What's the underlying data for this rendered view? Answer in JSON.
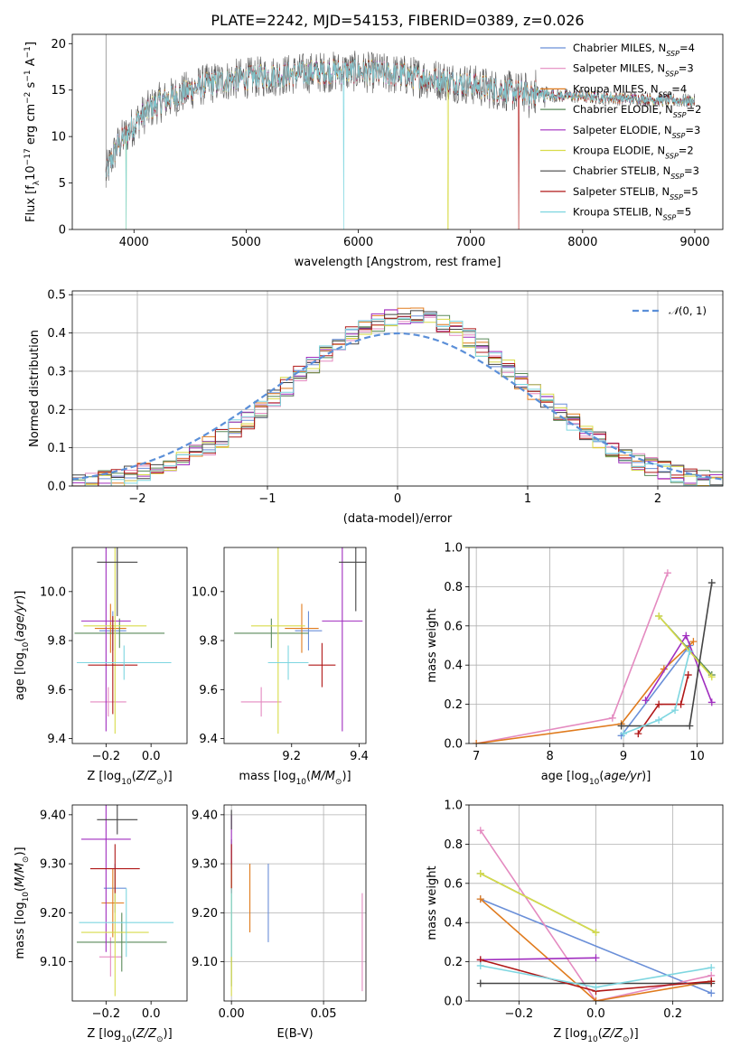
{
  "figure": {
    "title": "PLATE=2242, MJD=54153, FIBERID=0389, z=0.026"
  },
  "colors": {
    "Chabrier MILES": "#6a8fd8",
    "Salpeter MILES": "#e48ac0",
    "Kroupa MILES": "#e07b1e",
    "Chabrier ELODIE": "#5a8a5a",
    "Salpeter ELODIE": "#a02dbf",
    "Kroupa ELODIE": "#d8dc4a",
    "Chabrier STELIB": "#444444",
    "Salpeter STELIB": "#b01818",
    "Kroupa STELIB": "#7ed6e0",
    "spectrum": "#555555",
    "gaussian": "#5b8fd8",
    "grid": "#b0b0b0"
  },
  "chart_data": [
    {
      "id": "spectrum",
      "type": "line",
      "xlabel": "wavelength [Angstrom, rest frame]",
      "ylabel": "Flux [f_λ10^-17 erg cm^-2 s^-1 A^-1]",
      "xlim": [
        3450,
        9250
      ],
      "ylim": [
        0,
        21
      ],
      "xticks": [
        4000,
        5000,
        6000,
        7000,
        8000,
        9000
      ],
      "yticks": [
        0,
        5,
        10,
        15,
        20
      ],
      "grid": false,
      "legend_position": "top-right",
      "legend": [
        {
          "name": "Chabrier MILES",
          "nssp": "4"
        },
        {
          "name": "Salpeter MILES",
          "nssp": "3"
        },
        {
          "name": "Kroupa MILES",
          "nssp": "4"
        },
        {
          "name": "Chabrier ELODIE",
          "nssp": "2"
        },
        {
          "name": "Salpeter ELODIE",
          "nssp": "3"
        },
        {
          "name": "Kroupa ELODIE",
          "nssp": "2"
        },
        {
          "name": "Chabrier STELIB",
          "nssp": "3"
        },
        {
          "name": "Salpeter STELIB",
          "nssp": "5"
        },
        {
          "name": "Kroupa STELIB",
          "nssp": "5"
        }
      ],
      "continuum": [
        [
          3750,
          6.0
        ],
        [
          3850,
          9.0
        ],
        [
          3950,
          10.5
        ],
        [
          4050,
          12.0
        ],
        [
          4200,
          13.5
        ],
        [
          4400,
          14.5
        ],
        [
          4600,
          15.5
        ],
        [
          4800,
          16.0
        ],
        [
          5000,
          16.3
        ],
        [
          5200,
          16.5
        ],
        [
          5400,
          16.7
        ],
        [
          5600,
          16.9
        ],
        [
          5800,
          17.0
        ],
        [
          6000,
          17.0
        ],
        [
          6200,
          16.8
        ],
        [
          6400,
          16.6
        ],
        [
          6600,
          16.3
        ],
        [
          6800,
          16.0
        ],
        [
          7000,
          15.6
        ],
        [
          7200,
          15.1
        ],
        [
          7400,
          14.8
        ],
        [
          7600,
          14.6
        ],
        [
          7800,
          14.4
        ],
        [
          8000,
          14.3
        ],
        [
          8200,
          14.2
        ],
        [
          8400,
          14.1
        ],
        [
          8600,
          14.0
        ],
        [
          8800,
          13.9
        ],
        [
          9000,
          13.8
        ]
      ],
      "features": [
        {
          "x": 5175,
          "y": 11.9
        },
        {
          "x": 5870,
          "y": 0
        },
        {
          "x": 6800,
          "y": 0
        },
        {
          "x": 7430,
          "y": 0
        },
        {
          "x": 3760,
          "y": 4.5
        },
        {
          "x": 3930,
          "y": 2.5
        }
      ]
    },
    {
      "id": "residual_hist",
      "type": "line",
      "xlabel": "(data-model)/error",
      "ylabel": "Normed distribution",
      "xlim": [
        -2.5,
        2.5
      ],
      "ylim": [
        0,
        0.51
      ],
      "xticks": [
        -2,
        -1,
        0,
        1,
        2
      ],
      "yticks": [
        0.0,
        0.1,
        0.2,
        0.3,
        0.4,
        0.5
      ],
      "grid": true,
      "legend_position": "top-right",
      "legend": "N(0, 1)",
      "bin_width": 0.1,
      "hist_model": {
        "mean": 0.08,
        "sigma": 0.9
      }
    },
    {
      "id": "age_vs_Z",
      "type": "scatter",
      "xlabel": "Z [log10(Z/Z_sun)]",
      "ylabel": "age  [log10(age/yr)]",
      "xlim": [
        -0.35,
        0.16
      ],
      "ylim": [
        9.38,
        10.18
      ],
      "xticks": [
        -0.2,
        0.0
      ],
      "yticks": [
        9.4,
        9.6,
        9.8,
        10.0
      ],
      "grid": false,
      "points": [
        {
          "series": "Chabrier MILES",
          "x": -0.17,
          "y": 9.84,
          "ex": 0.06,
          "ey": 0.08
        },
        {
          "series": "Salpeter MILES",
          "x": -0.19,
          "y": 9.55,
          "ex": 0.08,
          "ey": 0.06
        },
        {
          "series": "Kroupa MILES",
          "x": -0.18,
          "y": 9.85,
          "ex": 0.07,
          "ey": 0.1
        },
        {
          "series": "Chabrier ELODIE",
          "x": -0.14,
          "y": 9.83,
          "ex": 0.2,
          "ey": 0.06
        },
        {
          "series": "Salpeter ELODIE",
          "x": -0.2,
          "y": 9.88,
          "ex": 0.11,
          "ey": 0.45
        },
        {
          "series": "Kroupa ELODIE",
          "x": -0.16,
          "y": 9.86,
          "ex": 0.14,
          "ey": 0.44
        },
        {
          "series": "Chabrier STELIB",
          "x": -0.15,
          "y": 10.12,
          "ex": 0.09,
          "ey": 0.22
        },
        {
          "series": "Salpeter STELIB",
          "x": -0.17,
          "y": 9.7,
          "ex": 0.11,
          "ey": 0.2
        },
        {
          "series": "Kroupa STELIB",
          "x": -0.12,
          "y": 9.71,
          "ex": 0.21,
          "ey": 0.07
        }
      ]
    },
    {
      "id": "age_vs_mass",
      "type": "scatter",
      "xlabel": "mass [log10(M/M_sun)]",
      "ylabel": "",
      "xlim": [
        9.0,
        9.42
      ],
      "ylim": [
        9.38,
        10.18
      ],
      "xticks": [
        9.2,
        9.4
      ],
      "yticks": [
        9.4,
        9.6,
        9.8,
        10.0
      ],
      "grid": false,
      "points": [
        {
          "series": "Chabrier MILES",
          "x": 9.25,
          "y": 9.84,
          "ex": 0.04,
          "ey": 0.08
        },
        {
          "series": "Salpeter MILES",
          "x": 9.11,
          "y": 9.55,
          "ex": 0.06,
          "ey": 0.06
        },
        {
          "series": "Kroupa MILES",
          "x": 9.23,
          "y": 9.85,
          "ex": 0.05,
          "ey": 0.1
        },
        {
          "series": "Chabrier ELODIE",
          "x": 9.14,
          "y": 9.83,
          "ex": 0.11,
          "ey": 0.06
        },
        {
          "series": "Salpeter ELODIE",
          "x": 9.35,
          "y": 9.88,
          "ex": 0.06,
          "ey": 0.45
        },
        {
          "series": "Kroupa ELODIE",
          "x": 9.16,
          "y": 9.86,
          "ex": 0.08,
          "ey": 0.44
        },
        {
          "series": "Chabrier STELIB",
          "x": 9.39,
          "y": 10.12,
          "ex": 0.05,
          "ey": 0.2
        },
        {
          "series": "Salpeter STELIB",
          "x": 9.29,
          "y": 9.7,
          "ex": 0.04,
          "ey": 0.09
        },
        {
          "series": "Kroupa STELIB",
          "x": 9.19,
          "y": 9.71,
          "ex": 0.06,
          "ey": 0.07
        }
      ]
    },
    {
      "id": "massweight_vs_age",
      "type": "line",
      "xlabel": "age  [log10(age/yr)]",
      "ylabel": "mass weight",
      "xlim": [
        6.9,
        10.35
      ],
      "ylim": [
        0,
        1.0
      ],
      "xticks": [
        7,
        8,
        9,
        10
      ],
      "yticks": [
        0.0,
        0.2,
        0.4,
        0.6,
        0.8,
        1.0
      ],
      "grid": true,
      "series": [
        {
          "name": "Chabrier MILES",
          "points": [
            [
              8.97,
              0.04
            ],
            [
              9.9,
              0.5
            ]
          ]
        },
        {
          "name": "Salpeter MILES",
          "points": [
            [
              7.0,
              0.0
            ],
            [
              8.85,
              0.13
            ],
            [
              9.6,
              0.87
            ]
          ]
        },
        {
          "name": "Kroupa MILES",
          "points": [
            [
              7.0,
              0.0
            ],
            [
              8.97,
              0.1
            ],
            [
              9.55,
              0.38
            ],
            [
              9.95,
              0.52
            ]
          ]
        },
        {
          "name": "Chabrier ELODIE",
          "points": [
            [
              9.48,
              0.65
            ],
            [
              10.2,
              0.35
            ]
          ]
        },
        {
          "name": "Salpeter ELODIE",
          "points": [
            [
              9.3,
              0.22
            ],
            [
              9.85,
              0.55
            ],
            [
              10.2,
              0.21
            ]
          ]
        },
        {
          "name": "Kroupa ELODIE",
          "points": [
            [
              9.48,
              0.65
            ],
            [
              10.2,
              0.34
            ]
          ]
        },
        {
          "name": "Chabrier STELIB",
          "points": [
            [
              8.97,
              0.09
            ],
            [
              9.9,
              0.09
            ],
            [
              10.2,
              0.82
            ]
          ]
        },
        {
          "name": "Salpeter STELIB",
          "points": [
            [
              9.2,
              0.05
            ],
            [
              9.48,
              0.2
            ],
            [
              9.78,
              0.2
            ],
            [
              9.88,
              0.35
            ]
          ]
        },
        {
          "name": "Kroupa STELIB",
          "points": [
            [
              9.0,
              0.05
            ],
            [
              9.48,
              0.12
            ],
            [
              9.7,
              0.17
            ],
            [
              9.9,
              0.47
            ]
          ]
        }
      ]
    },
    {
      "id": "mass_vs_Z",
      "type": "scatter",
      "xlabel": "Z [log10(Z/Z_sun)]",
      "ylabel": "mass [log10(M/M_sun)]",
      "xlim": [
        -0.35,
        0.16
      ],
      "ylim": [
        9.02,
        9.42
      ],
      "xticks": [
        -0.2,
        0.0
      ],
      "yticks": [
        9.1,
        9.2,
        9.3,
        9.4
      ],
      "grid": false,
      "points": [
        {
          "series": "Chabrier MILES",
          "x": -0.16,
          "y": 9.25,
          "ex": 0.05,
          "ey": 0.05
        },
        {
          "series": "Salpeter MILES",
          "x": -0.18,
          "y": 9.11,
          "ex": 0.05,
          "ey": 0.04
        },
        {
          "series": "Kroupa MILES",
          "x": -0.17,
          "y": 9.22,
          "ex": 0.05,
          "ey": 0.07
        },
        {
          "series": "Chabrier ELODIE",
          "x": -0.13,
          "y": 9.14,
          "ex": 0.2,
          "ey": 0.06
        },
        {
          "series": "Salpeter ELODIE",
          "x": -0.2,
          "y": 9.35,
          "ex": 0.11,
          "ey": 0.23
        },
        {
          "series": "Kroupa ELODIE",
          "x": -0.16,
          "y": 9.16,
          "ex": 0.15,
          "ey": 0.13
        },
        {
          "series": "Chabrier STELIB",
          "x": -0.15,
          "y": 9.39,
          "ex": 0.09,
          "ey": 0.03
        },
        {
          "series": "Salpeter STELIB",
          "x": -0.16,
          "y": 9.29,
          "ex": 0.11,
          "ey": 0.05
        },
        {
          "series": "Kroupa STELIB",
          "x": -0.11,
          "y": 9.18,
          "ex": 0.21,
          "ey": 0.07
        }
      ]
    },
    {
      "id": "mass_vs_ebv",
      "type": "scatter",
      "xlabel": "E(B-V)",
      "ylabel": "",
      "xlim": [
        -0.004,
        0.073
      ],
      "ylim": [
        9.02,
        9.42
      ],
      "xticks": [
        0.0,
        0.05
      ],
      "yticks": [
        9.1,
        9.2,
        9.3,
        9.4
      ],
      "grid": true,
      "points": [
        {
          "series": "Chabrier MILES",
          "x": 0.02,
          "y": 9.22,
          "ex": 0,
          "ey": 0.08
        },
        {
          "series": "Salpeter MILES",
          "x": 0.071,
          "y": 9.14,
          "ex": 0,
          "ey": 0.1
        },
        {
          "series": "Kroupa MILES",
          "x": 0.01,
          "y": 9.23,
          "ex": 0,
          "ey": 0.07
        },
        {
          "series": "Chabrier ELODIE",
          "x": 0.0,
          "y": 9.2,
          "ex": 0,
          "ey": 0.15
        },
        {
          "series": "Salpeter ELODIE",
          "x": 0.0,
          "y": 9.35,
          "ex": 0,
          "ey": 0.05
        },
        {
          "series": "Kroupa ELODIE",
          "x": 0.0,
          "y": 9.16,
          "ex": 0,
          "ey": 0.13
        },
        {
          "series": "Chabrier STELIB",
          "x": 0.0,
          "y": 9.39,
          "ex": 0,
          "ey": 0.02
        },
        {
          "series": "Salpeter STELIB",
          "x": 0.0,
          "y": 9.29,
          "ex": 0,
          "ey": 0.05
        },
        {
          "series": "Kroupa STELIB",
          "x": 0.0,
          "y": 9.18,
          "ex": 0,
          "ey": 0.07
        }
      ]
    },
    {
      "id": "massweight_vs_Z",
      "type": "line",
      "xlabel": "Z [log10(Z/Z_sun)]",
      "ylabel": "mass weight",
      "xlim": [
        -0.33,
        0.33
      ],
      "ylim": [
        0,
        1.0
      ],
      "xticks": [
        -0.2,
        0.0,
        0.2
      ],
      "yticks": [
        0.0,
        0.2,
        0.4,
        0.6,
        0.8,
        1.0
      ],
      "grid": true,
      "series": [
        {
          "name": "Chabrier MILES",
          "points": [
            [
              -0.3,
              0.52
            ],
            [
              0.3,
              0.04
            ]
          ]
        },
        {
          "name": "Salpeter MILES",
          "points": [
            [
              -0.3,
              0.87
            ],
            [
              0.0,
              0.0
            ],
            [
              0.3,
              0.13
            ]
          ]
        },
        {
          "name": "Kroupa MILES",
          "points": [
            [
              -0.3,
              0.52
            ],
            [
              0.0,
              0.0
            ],
            [
              0.3,
              0.1
            ]
          ]
        },
        {
          "name": "Chabrier ELODIE",
          "points": [
            [
              -0.3,
              0.65
            ],
            [
              0.0,
              0.35
            ]
          ]
        },
        {
          "name": "Salpeter ELODIE",
          "points": [
            [
              -0.3,
              0.21
            ],
            [
              0.0,
              0.22
            ]
          ]
        },
        {
          "name": "Kroupa ELODIE",
          "points": [
            [
              -0.3,
              0.65
            ],
            [
              0.0,
              0.35
            ]
          ]
        },
        {
          "name": "Chabrier STELIB",
          "points": [
            [
              -0.3,
              0.09
            ],
            [
              0.3,
              0.09
            ]
          ]
        },
        {
          "name": "Salpeter STELIB",
          "points": [
            [
              -0.3,
              0.21
            ],
            [
              0.0,
              0.05
            ],
            [
              0.3,
              0.1
            ]
          ]
        },
        {
          "name": "Kroupa STELIB",
          "points": [
            [
              -0.3,
              0.18
            ],
            [
              0.0,
              0.07
            ],
            [
              0.3,
              0.17
            ]
          ]
        }
      ]
    }
  ]
}
